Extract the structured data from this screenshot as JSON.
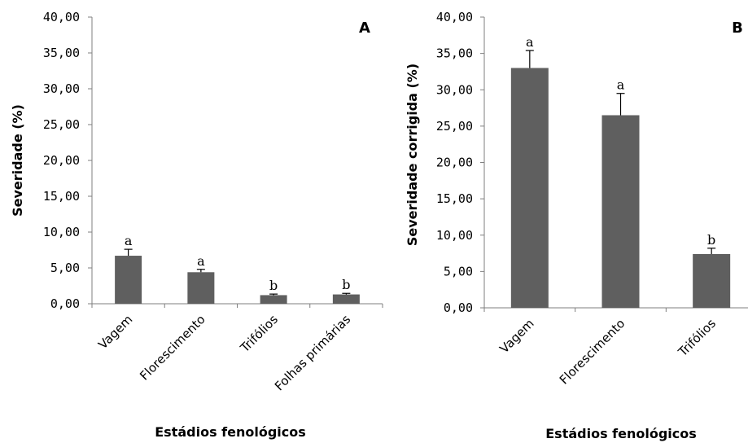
{
  "chart_data": [
    {
      "type": "bar",
      "panel_label": "A",
      "categories": [
        "Vagem",
        "Florescimento",
        "Trifólios",
        "Folhas primárias"
      ],
      "values": [
        6.7,
        4.4,
        1.2,
        1.3
      ],
      "errors": [
        0.9,
        0.4,
        0.15,
        0.15
      ],
      "significance": [
        "a",
        "a",
        "b",
        "b"
      ],
      "title": "",
      "xlabel": "Estádios fenológicos",
      "ylabel": "Severidade (%)",
      "ylim": [
        0,
        40
      ],
      "yticks": [
        "0,00",
        "5,00",
        "10,00",
        "15,00",
        "20,00",
        "25,00",
        "30,00",
        "35,00",
        "40,00"
      ],
      "bar_color": "#5f5f5f",
      "grid": false
    },
    {
      "type": "bar",
      "panel_label": "B",
      "categories": [
        "Vagem",
        "Florescimento",
        "Trifólios"
      ],
      "values": [
        33.0,
        26.5,
        7.4
      ],
      "errors": [
        2.4,
        3.0,
        0.8
      ],
      "significance": [
        "a",
        "a",
        "b"
      ],
      "title": "",
      "xlabel": "Estádios fenológicos",
      "ylabel": "Severidade corrigida (%)",
      "ylim": [
        0,
        40
      ],
      "yticks": [
        "0,00",
        "5,00",
        "10,00",
        "15,00",
        "20,00",
        "25,00",
        "30,00",
        "35,00",
        "40,00"
      ],
      "bar_color": "#5f5f5f",
      "grid": false
    }
  ]
}
